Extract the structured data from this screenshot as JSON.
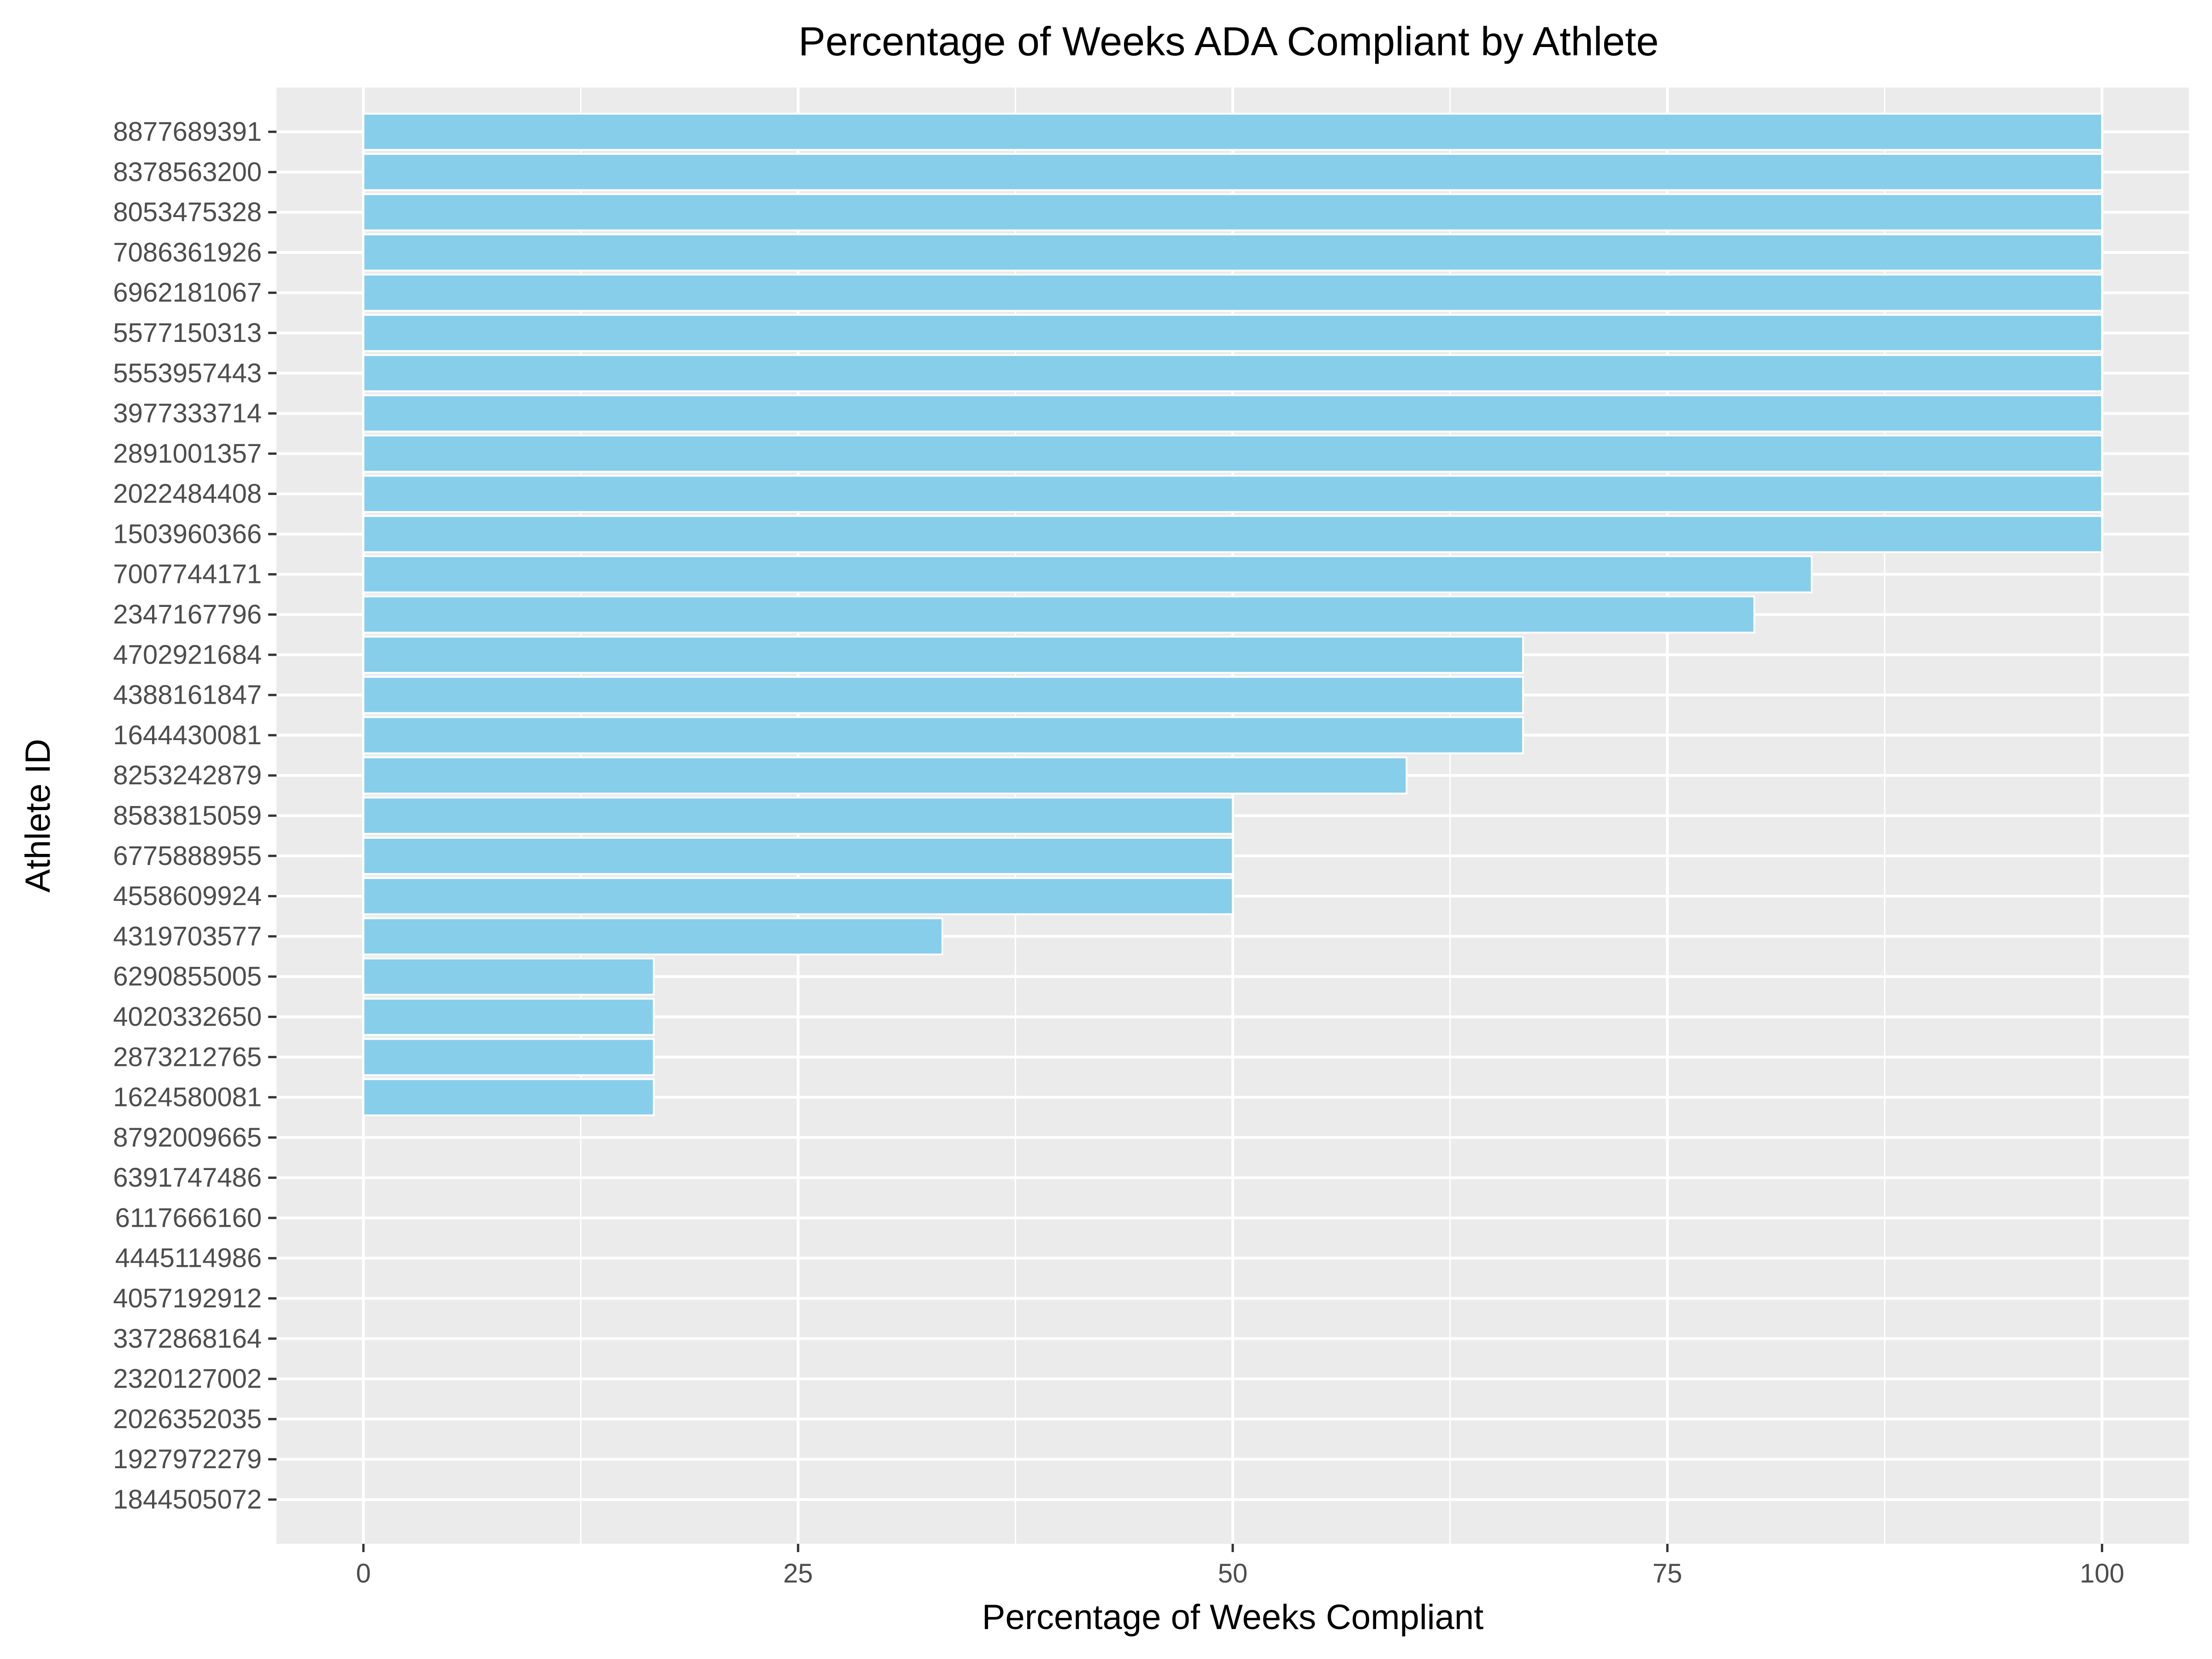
{
  "chart_data": {
    "type": "bar",
    "orientation": "horizontal",
    "title": "Percentage of Weeks ADA Compliant by Athlete",
    "xlabel": "Percentage of Weeks Compliant",
    "ylabel": "Athlete ID",
    "xlim": [
      -5,
      105
    ],
    "xticks": [
      0,
      25,
      50,
      75,
      100
    ],
    "grid": true,
    "legend": "none",
    "bar_color": "#87CEEB",
    "panel_color": "#EBEBEB",
    "grid_color": "#FFFFFF",
    "categories": [
      "8877689391",
      "8378563200",
      "8053475328",
      "7086361926",
      "6962181067",
      "5577150313",
      "5553957443",
      "3977333714",
      "2891001357",
      "2022484408",
      "1503960366",
      "7007744171",
      "2347167796",
      "4702921684",
      "4388161847",
      "1644430081",
      "8253242879",
      "8583815059",
      "6775888955",
      "4558609924",
      "4319703577",
      "6290855005",
      "4020332650",
      "2873212765",
      "1624580081",
      "8792009665",
      "6391747486",
      "6117666160",
      "4445114986",
      "4057192912",
      "3372868164",
      "2320127002",
      "2026352035",
      "1927972279",
      "1844505072"
    ],
    "values": [
      100,
      100,
      100,
      100,
      100,
      100,
      100,
      100,
      100,
      100,
      100,
      83.3,
      80,
      66.7,
      66.7,
      66.7,
      60,
      50,
      50,
      50,
      33.3,
      16.7,
      16.7,
      16.7,
      16.7,
      0,
      0,
      0,
      0,
      0,
      0,
      0,
      0,
      0,
      0
    ]
  }
}
